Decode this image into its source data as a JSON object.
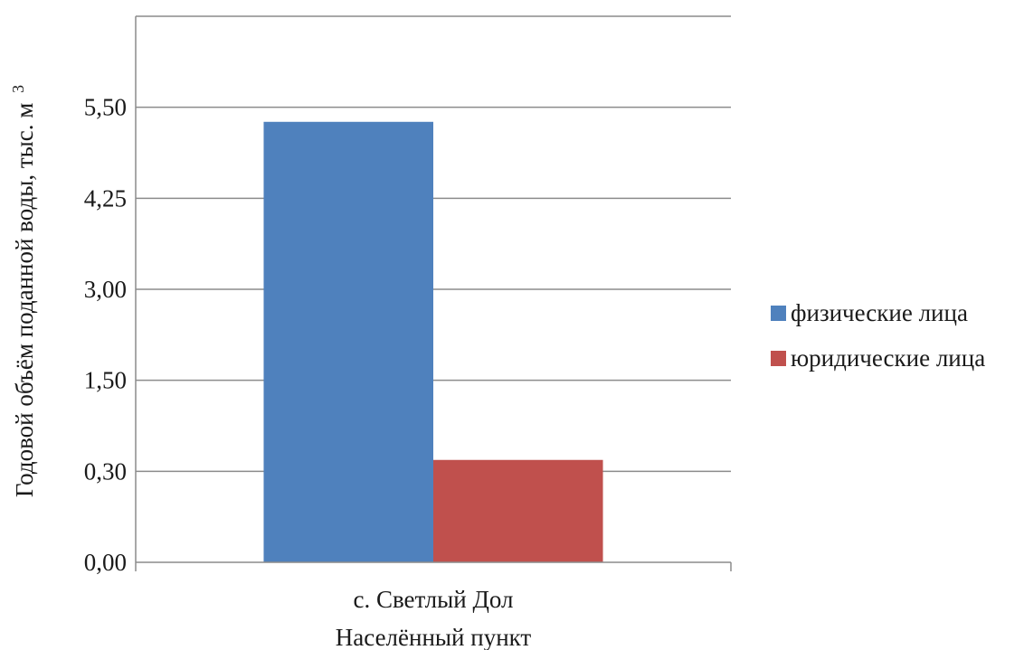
{
  "chart_data": {
    "type": "bar",
    "categories": [
      "с. Светлый Дол"
    ],
    "series": [
      {
        "name": "физические лица",
        "values": [
          5.3
        ],
        "color": "#4f81bd"
      },
      {
        "name": "юридические лица",
        "values": [
          0.45
        ],
        "color": "#c0504d"
      }
    ],
    "y_ticks": [
      "0,00",
      "0,30",
      "1,50",
      "3,00",
      "4,25",
      "5,50"
    ],
    "y_tick_values": [
      0.0,
      0.3,
      1.5,
      3.0,
      4.25,
      5.5
    ],
    "y_scale": "categorical-spaced ticks (equal spacing between listed tick values)",
    "ylim": [
      0,
      5.5
    ],
    "ylabel": "Годовой объём поданной воды, тыс. м",
    "ylabel_superscript": "3",
    "xlabel": "Населённый пункт",
    "grid": true,
    "legend_position": "right"
  }
}
